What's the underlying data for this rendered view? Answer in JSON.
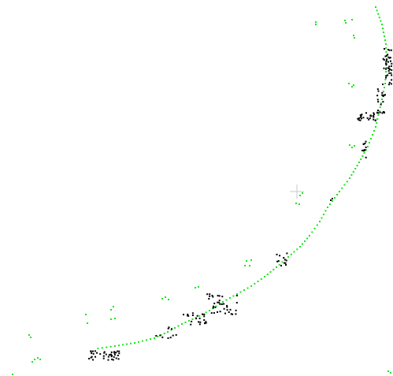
{
  "colors": {
    "background": "#ffffff",
    "green_points": "#19e619",
    "black_points": "#000000",
    "crosshair": "#c8c8c8"
  },
  "icons": {
    "crosshair": "crosshair-icon"
  }
}
